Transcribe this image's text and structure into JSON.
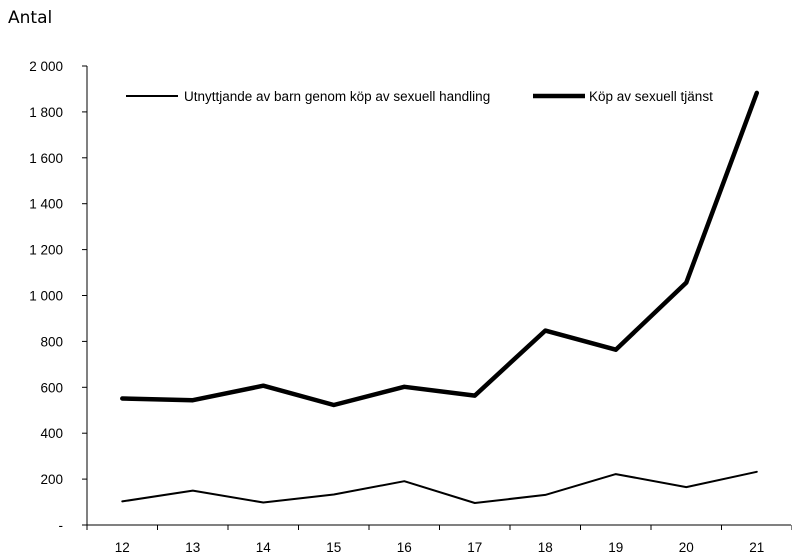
{
  "chart_data": {
    "type": "line",
    "title": "",
    "ylabel": "Antal",
    "xlabel": "",
    "categories": [
      "12",
      "13",
      "14",
      "15",
      "16",
      "17",
      "18",
      "19",
      "20",
      "21"
    ],
    "y_ticks": [
      "-",
      "200",
      "400",
      "600",
      "800",
      "1 000",
      "1 200",
      "1 400",
      "1 600",
      "1 800",
      "2 000"
    ],
    "ylim": [
      0,
      2000
    ],
    "grid": false,
    "legend_position": "top",
    "series": [
      {
        "name": "Utnyttjande av barn genom köp av sexuell handling",
        "values": [
          103,
          150,
          98,
          133,
          191,
          96,
          131,
          222,
          165,
          232
        ],
        "color": "#000000",
        "weight": "thin"
      },
      {
        "name": "Köp av sexuell tjänst",
        "values": [
          551,
          544,
          607,
          523,
          602,
          564,
          847,
          764,
          1056,
          1883
        ],
        "color": "#000000",
        "weight": "thick"
      }
    ]
  }
}
